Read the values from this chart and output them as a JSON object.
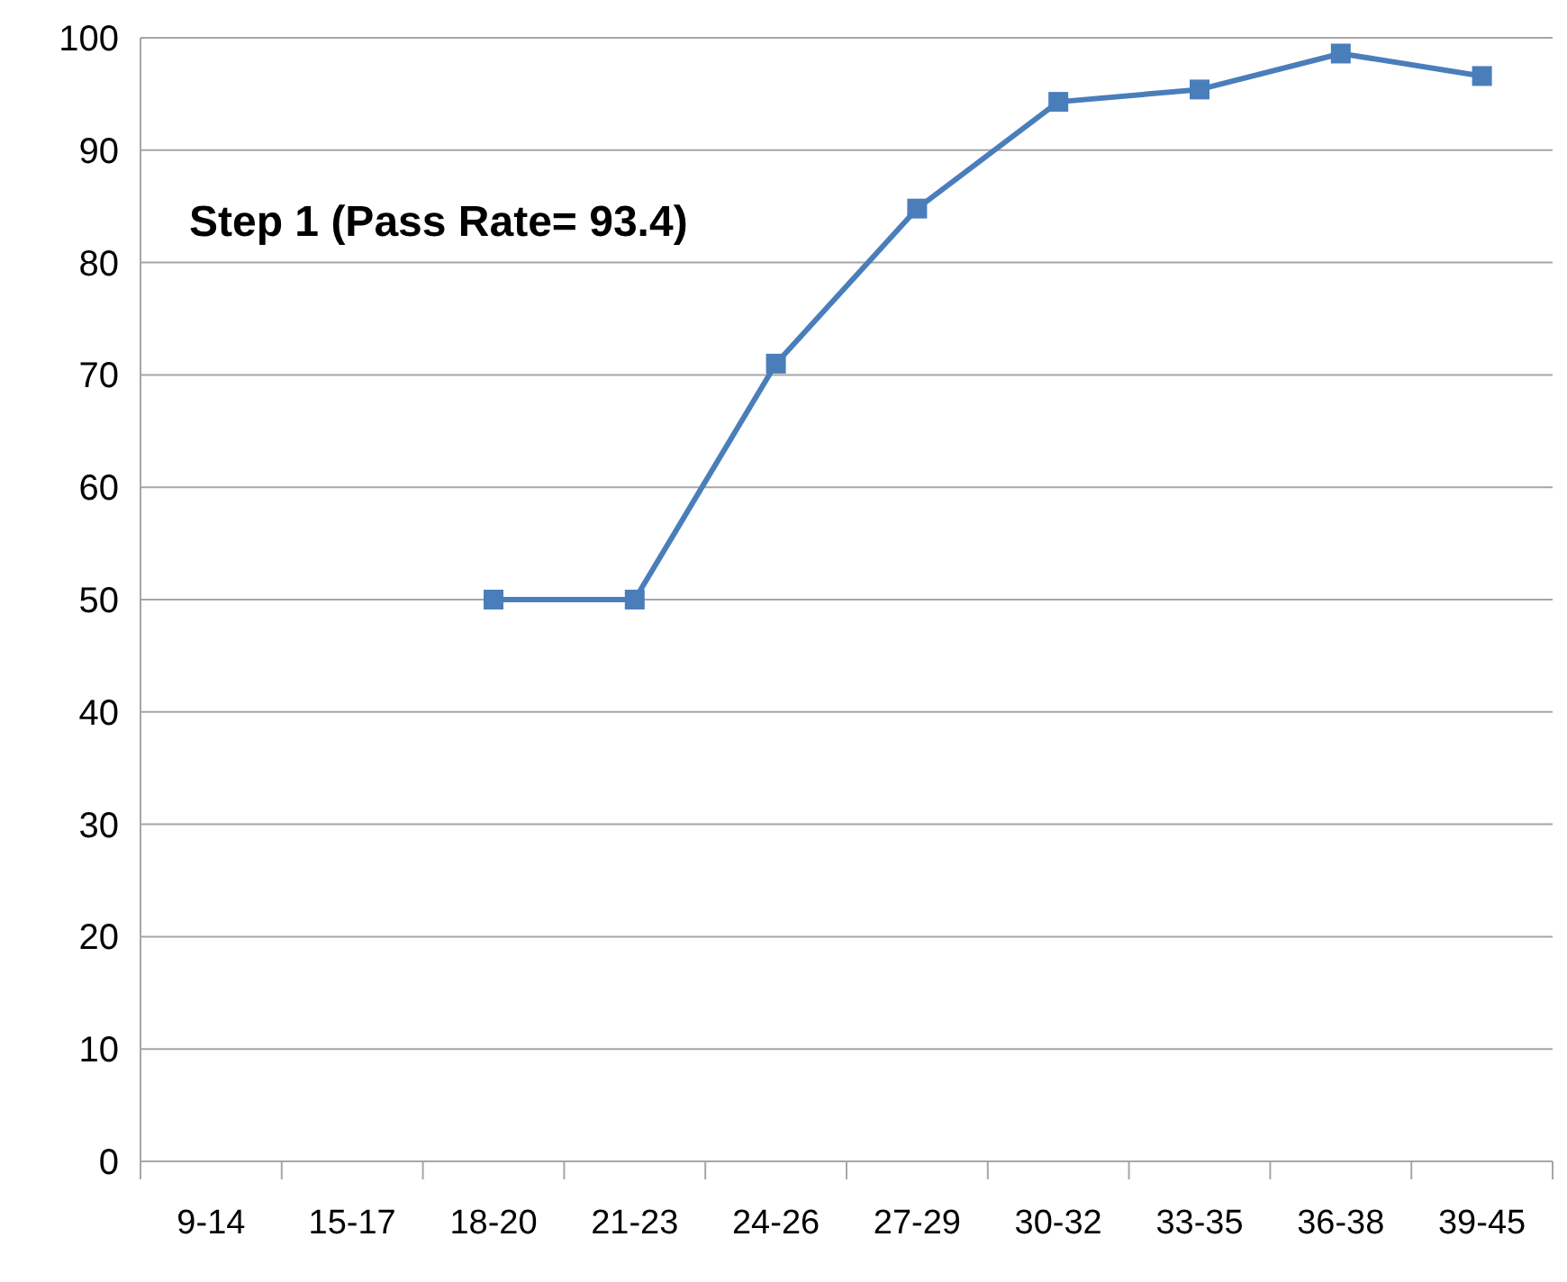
{
  "chart_data": {
    "type": "line",
    "categories": [
      "9-14",
      "15-17",
      "18-20",
      "21-23",
      "24-26",
      "27-29",
      "30-32",
      "33-35",
      "36-38",
      "39-45"
    ],
    "series": [
      {
        "color": "#4a7ebb",
        "values": [
          null,
          null,
          50,
          50,
          71,
          84.8,
          94.3,
          95.4,
          98.6,
          96.6
        ]
      }
    ],
    "ylim": [
      0,
      100
    ],
    "yticks": [
      0,
      10,
      20,
      30,
      40,
      50,
      60,
      70,
      80,
      90,
      100
    ],
    "grid": "y",
    "marker": "square",
    "line_style": "solid",
    "annotations": [
      "Step 1 (Pass Rate= 93.4)"
    ]
  }
}
